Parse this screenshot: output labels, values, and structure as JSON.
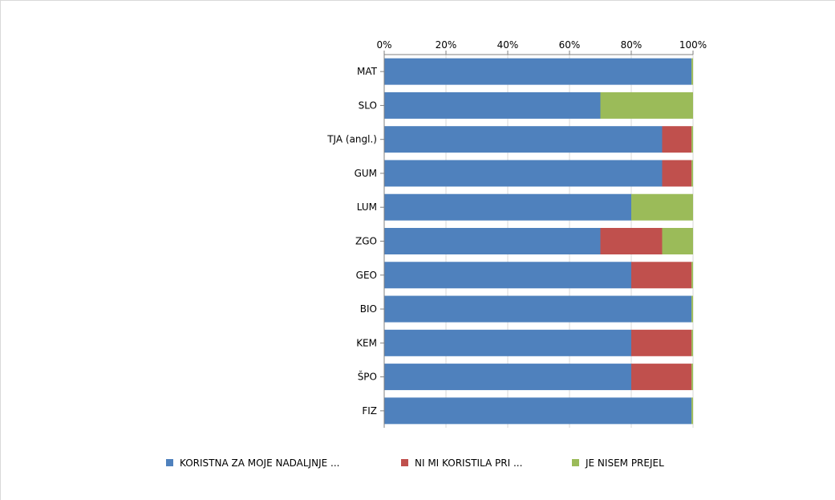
{
  "chart_data": {
    "type": "bar",
    "orientation": "horizontal",
    "stacked": "percent",
    "categories": [
      "MAT",
      "SLO",
      "TJA (angl.)",
      "GUM",
      "LUM",
      "ZGO",
      "GEO",
      "BIO",
      "KEM",
      "ŠPO",
      "FIZ"
    ],
    "series": [
      {
        "name": "KORISTNA ZA MOJE NADALJNJE ...",
        "color": "#4f81bd",
        "values": [
          99.5,
          70,
          90,
          90,
          80,
          70,
          80,
          99.5,
          80,
          80,
          99.5
        ]
      },
      {
        "name": "NI MI KORISTILA PRI ...",
        "color": "#c0504d",
        "values": [
          0,
          0,
          9.5,
          9.5,
          0,
          20,
          19.5,
          0,
          19.5,
          19.5,
          0
        ]
      },
      {
        "name": "JE NISEM PREJEL",
        "color": "#9bbb59",
        "values": [
          0.5,
          30,
          0.5,
          0.5,
          20,
          10,
          0.5,
          0.5,
          0.5,
          0.5,
          0.5
        ]
      }
    ],
    "xticks": [
      "0%",
      "20%",
      "40%",
      "60%",
      "80%",
      "100%"
    ],
    "xlim": [
      0,
      100
    ],
    "grid": true,
    "legend_position": "bottom"
  }
}
